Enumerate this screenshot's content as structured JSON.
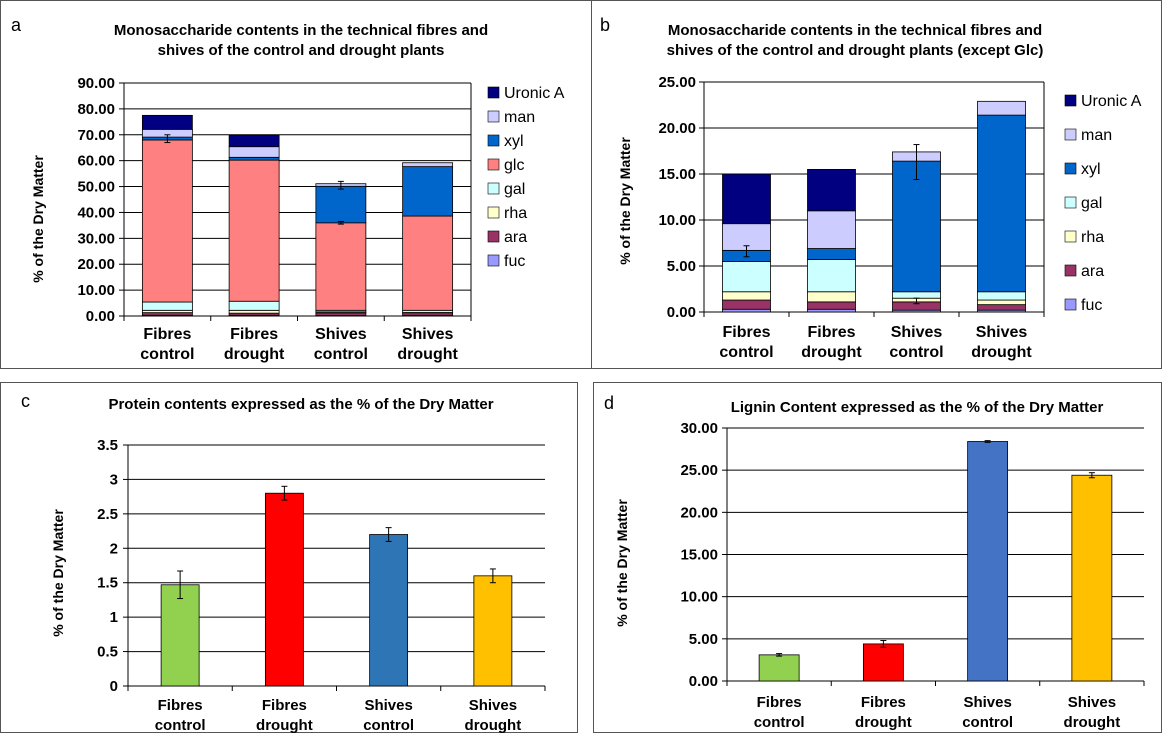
{
  "chart_data": [
    {
      "panel": "a",
      "type": "bar",
      "stacked": true,
      "title": [
        "Monosaccharide contents in the technical fibres and",
        "shives of the control and drought plants"
      ],
      "ylabel": "% of the Dry Matter",
      "categories": [
        [
          "Fibres",
          "control"
        ],
        [
          "Fibres",
          "drought"
        ],
        [
          "Shives",
          "control"
        ],
        [
          "Shives",
          "drought"
        ]
      ],
      "ylim": [
        0,
        90
      ],
      "yticks": [
        "0.00",
        "10.00",
        "20.00",
        "30.00",
        "40.00",
        "50.00",
        "60.00",
        "70.00",
        "80.00",
        "90.00"
      ],
      "legend_position": "right",
      "series": [
        {
          "name": "fuc",
          "color": "#9999ff",
          "values": [
            0.3,
            0.3,
            0.2,
            0.2
          ]
        },
        {
          "name": "ara",
          "color": "#993366",
          "values": [
            1.0,
            0.8,
            1.0,
            0.7
          ]
        },
        {
          "name": "rha",
          "color": "#ffffcc",
          "values": [
            0.9,
            1.1,
            0.4,
            0.5
          ]
        },
        {
          "name": "gal",
          "color": "#ccffff",
          "values": [
            3.2,
            3.5,
            0.6,
            0.8
          ]
        },
        {
          "name": "glc",
          "color": "#ff8080",
          "values": [
            62.6,
            54.5,
            33.8,
            36.4
          ]
        },
        {
          "name": "xyl",
          "color": "#0066cc",
          "values": [
            1.1,
            1.1,
            14.1,
            19.1
          ]
        },
        {
          "name": "man",
          "color": "#ccccff",
          "values": [
            3.0,
            4.1,
            1.0,
            1.5
          ]
        },
        {
          "name": "Uronic A",
          "color": "#000080",
          "values": [
            5.4,
            4.5,
            0.0,
            0.0
          ]
        }
      ],
      "errors": [
        {
          "category": 0,
          "y": 68.5,
          "err": 1.5
        },
        {
          "category": 2,
          "y": 36.0,
          "err": 0.5
        },
        {
          "category": 2,
          "y": 50.5,
          "err": 1.5
        }
      ]
    },
    {
      "panel": "b",
      "type": "bar",
      "stacked": true,
      "title": [
        "Monosaccharide contents in the technical fibres and",
        "shives of the control and drought plants (except Glc)"
      ],
      "ylabel": "% of the Dry Matter",
      "categories": [
        [
          "Fibres",
          "control"
        ],
        [
          "Fibres",
          "drought"
        ],
        [
          "Shives",
          "control"
        ],
        [
          "Shives",
          "drought"
        ]
      ],
      "ylim": [
        0,
        25
      ],
      "yticks": [
        "0.00",
        "5.00",
        "10.00",
        "15.00",
        "20.00",
        "25.00"
      ],
      "legend_position": "right",
      "series": [
        {
          "name": "fuc",
          "color": "#9999ff",
          "values": [
            0.3,
            0.3,
            0.2,
            0.2
          ]
        },
        {
          "name": "ara",
          "color": "#993366",
          "values": [
            1.0,
            0.8,
            0.9,
            0.6
          ]
        },
        {
          "name": "rha",
          "color": "#ffffcc",
          "values": [
            0.9,
            1.1,
            0.4,
            0.5
          ]
        },
        {
          "name": "gal",
          "color": "#ccffff",
          "values": [
            3.3,
            3.5,
            0.7,
            0.9
          ]
        },
        {
          "name": "xyl",
          "color": "#0066cc",
          "values": [
            1.2,
            1.2,
            14.2,
            19.2
          ]
        },
        {
          "name": "man",
          "color": "#ccccff",
          "values": [
            2.9,
            4.1,
            1.0,
            1.5
          ]
        },
        {
          "name": "Uronic A",
          "color": "#000080",
          "values": [
            5.4,
            4.5,
            0.0,
            0.0
          ]
        }
      ],
      "errors": [
        {
          "category": 0,
          "y": 6.6,
          "err": 0.6
        },
        {
          "category": 2,
          "y": 1.2,
          "err": 0.3
        },
        {
          "category": 2,
          "y": 16.3,
          "err": 1.9
        }
      ]
    },
    {
      "panel": "c",
      "type": "bar",
      "title": "Protein contents expressed as the  % of the Dry Matter",
      "ylabel": "% of the Dry Matter",
      "categories": [
        [
          "Fibres",
          "control"
        ],
        [
          "Fibres",
          "drought"
        ],
        [
          "Shives",
          "control"
        ],
        [
          "Shives",
          "drought"
        ]
      ],
      "ylim": [
        0,
        3.5
      ],
      "yticks": [
        "0",
        "0.5",
        "1",
        "1.5",
        "2",
        "2.5",
        "3",
        "3.5"
      ],
      "values": [
        1.47,
        2.8,
        2.2,
        1.6
      ],
      "errors": [
        0.2,
        0.1,
        0.1,
        0.1
      ],
      "colors": [
        "#92d050",
        "#ff0000",
        "#2e75b6",
        "#ffc000"
      ]
    },
    {
      "panel": "d",
      "type": "bar",
      "title": "Lignin Content expressed as the  % of the Dry Matter",
      "ylabel": "% of the Dry Matter",
      "categories": [
        [
          "Fibres",
          "control"
        ],
        [
          "Fibres",
          "drought"
        ],
        [
          "Shives",
          "control"
        ],
        [
          "Shives",
          "drought"
        ]
      ],
      "ylim": [
        0,
        30
      ],
      "yticks": [
        "0.00",
        "5.00",
        "10.00",
        "15.00",
        "20.00",
        "25.00",
        "30.00"
      ],
      "values": [
        3.1,
        4.4,
        28.4,
        24.4
      ],
      "errors": [
        0.15,
        0.4,
        0.1,
        0.3
      ],
      "colors": [
        "#92d050",
        "#ff0000",
        "#4472c4",
        "#ffc000"
      ]
    }
  ]
}
